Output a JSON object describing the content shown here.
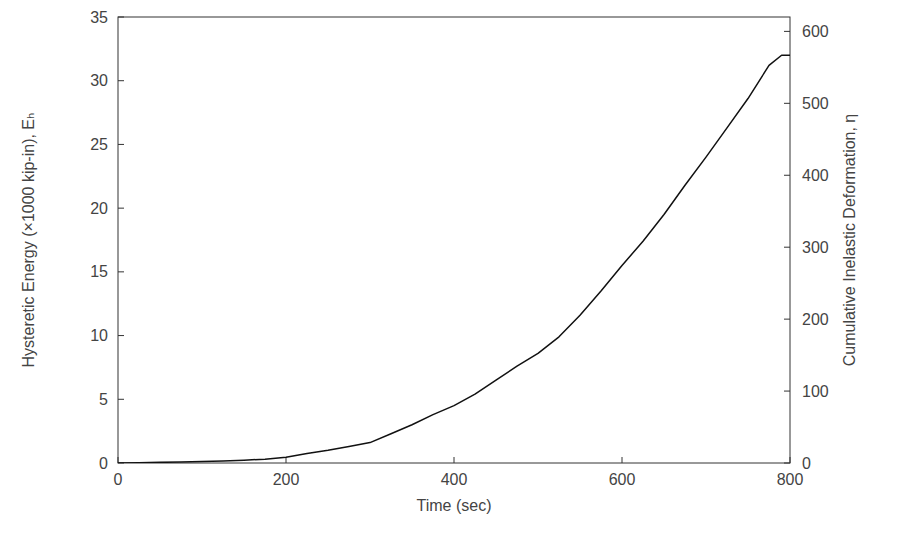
{
  "chart_data": {
    "type": "line",
    "x_label": "Time (sec)",
    "y_label": "Hysteretic Energy (×1000 kip-in), Eₕ",
    "y2_label": "Cumulative Inelastic Deformation, η",
    "x": [
      0,
      25,
      50,
      75,
      100,
      125,
      150,
      175,
      200,
      225,
      250,
      275,
      300,
      325,
      350,
      375,
      400,
      425,
      450,
      475,
      500,
      525,
      550,
      575,
      600,
      625,
      650,
      675,
      700,
      725,
      750,
      775,
      790,
      800
    ],
    "series": [
      {
        "name": "Hysteretic Energy",
        "color": "#111111",
        "axis": "y",
        "values": [
          0,
          0.02,
          0.05,
          0.08,
          0.12,
          0.16,
          0.22,
          0.3,
          0.45,
          0.75,
          1.0,
          1.3,
          1.6,
          2.3,
          3.0,
          3.8,
          4.5,
          5.4,
          6.5,
          7.6,
          8.6,
          9.9,
          11.6,
          13.5,
          15.5,
          17.4,
          19.5,
          21.8,
          24.0,
          26.3,
          28.6,
          31.2,
          32.0,
          32.0
        ]
      }
    ],
    "xlim": [
      0,
      800
    ],
    "xticks": [
      0,
      200,
      400,
      600,
      800
    ],
    "ylim": [
      0,
      35
    ],
    "yticks": [
      0,
      5,
      10,
      15,
      20,
      25,
      30,
      35
    ],
    "y2lim": [
      0,
      620
    ],
    "y2ticks": [
      0,
      100,
      200,
      300,
      400,
      500,
      600
    ],
    "grid": false
  }
}
